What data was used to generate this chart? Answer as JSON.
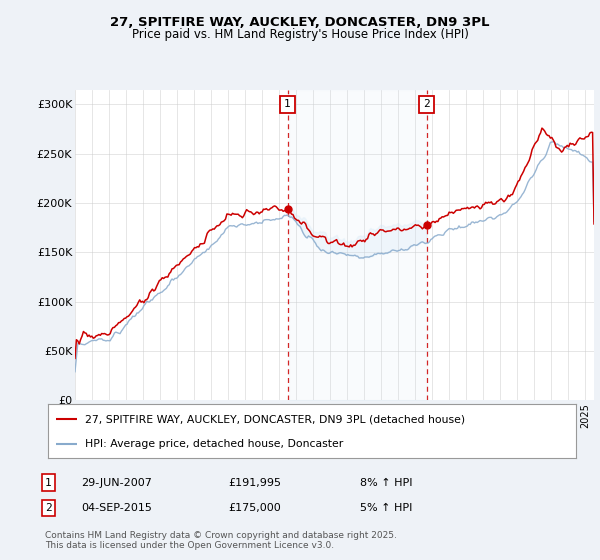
{
  "title1": "27, SPITFIRE WAY, AUCKLEY, DONCASTER, DN9 3PL",
  "title2": "Price paid vs. HM Land Registry's House Price Index (HPI)",
  "ylabel_ticks": [
    "£0",
    "£50K",
    "£100K",
    "£150K",
    "£200K",
    "£250K",
    "£300K"
  ],
  "ytick_vals": [
    0,
    50000,
    100000,
    150000,
    200000,
    250000,
    300000
  ],
  "ylim": [
    0,
    315000
  ],
  "xlim_start": 1995.0,
  "xlim_end": 2025.5,
  "sale1_x": 2007.49,
  "sale1_y": 191995,
  "sale1_label": "1",
  "sale1_date": "29-JUN-2007",
  "sale1_price": "£191,995",
  "sale1_hpi": "8% ↑ HPI",
  "sale2_x": 2015.67,
  "sale2_y": 175000,
  "sale2_label": "2",
  "sale2_date": "04-SEP-2015",
  "sale2_price": "£175,000",
  "sale2_hpi": "5% ↑ HPI",
  "line_color_red": "#cc0000",
  "line_color_blue": "#88aacc",
  "fill_color_blue": "#d0e4f4",
  "grid_color": "#cccccc",
  "bg_color": "#eef2f7",
  "plot_bg": "#ffffff",
  "legend_label_red": "27, SPITFIRE WAY, AUCKLEY, DONCASTER, DN9 3PL (detached house)",
  "legend_label_blue": "HPI: Average price, detached house, Doncaster",
  "footer": "Contains HM Land Registry data © Crown copyright and database right 2025.\nThis data is licensed under the Open Government Licence v3.0.",
  "marker_box_color": "#cc0000",
  "sale_dot_color": "#cc0000"
}
